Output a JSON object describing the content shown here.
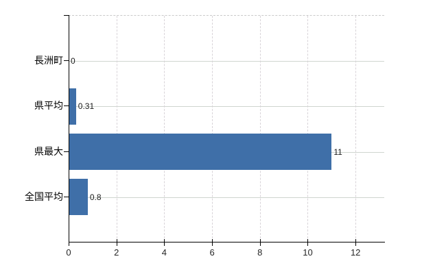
{
  "chart_data": {
    "type": "bar",
    "orientation": "horizontal",
    "title": "",
    "xlabel": "",
    "ylabel": "",
    "categories": [
      "長洲町",
      "県平均",
      "県最大",
      "全国平均"
    ],
    "values": [
      0,
      0.31,
      11,
      0.8
    ],
    "value_labels": [
      "0",
      "0.31",
      "11",
      "0.8"
    ],
    "x_ticks": [
      "0",
      "2",
      "4",
      "6",
      "8",
      "10",
      "12"
    ],
    "x_tick_values": [
      0,
      2,
      4,
      6,
      8,
      10,
      12
    ],
    "xlim": [
      0,
      13.2
    ],
    "grid": true,
    "legend": null,
    "colors": {
      "bar": "#3f6fa8",
      "axis": "#000000",
      "h_gridline": "#cfd5cf",
      "v_gridline": "#d8d3d8",
      "plot_top_border": "#c9c9c9",
      "value_label": "#1a1a1a",
      "tick_label": "#262626",
      "category_label": "#000000",
      "background": "#ffffff"
    }
  }
}
